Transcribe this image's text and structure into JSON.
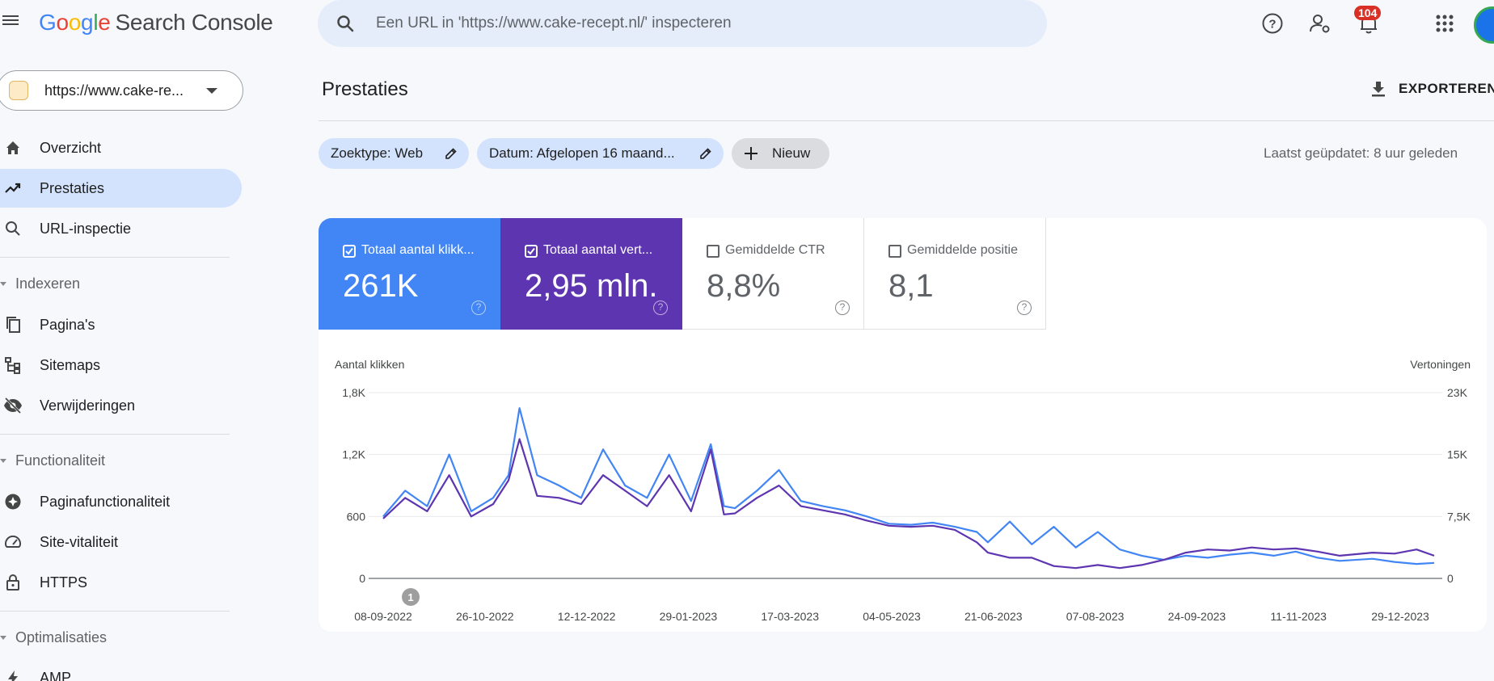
{
  "app": {
    "logo_letters": [
      "G",
      "o",
      "o",
      "g",
      "l",
      "e"
    ],
    "product": "Search Console"
  },
  "search": {
    "placeholder": "Een URL in 'https://www.cake-recept.nl/' inspecteren"
  },
  "topbar": {
    "icons": [
      "help-icon",
      "manage-users-icon",
      "notifications-icon",
      "apps-icon"
    ],
    "notification_count": "104"
  },
  "property": {
    "label": "https://www.cake-re..."
  },
  "sidebar": {
    "items": [
      {
        "label": "Overzicht",
        "icon": "home-icon",
        "active": false
      },
      {
        "label": "Prestaties",
        "icon": "trending-up-icon",
        "active": true
      },
      {
        "label": "URL-inspectie",
        "icon": "search-icon",
        "active": false
      }
    ],
    "sections": [
      {
        "title": "Indexeren",
        "items": [
          {
            "label": "Pagina's",
            "icon": "pages-icon"
          },
          {
            "label": "Sitemaps",
            "icon": "sitemap-icon"
          },
          {
            "label": "Verwijderingen",
            "icon": "eye-off-icon"
          }
        ]
      },
      {
        "title": "Functionaliteit",
        "items": [
          {
            "label": "Paginafunctionaliteit",
            "icon": "page-experience-icon"
          },
          {
            "label": "Site-vitaliteit",
            "icon": "speed-icon"
          },
          {
            "label": "HTTPS",
            "icon": "lock-icon"
          }
        ]
      },
      {
        "title": "Optimalisaties",
        "items": [
          {
            "label": "AMP",
            "icon": "bolt-icon"
          }
        ]
      }
    ]
  },
  "main": {
    "title": "Prestaties",
    "export_label": "EXPORTEREN",
    "filters": [
      {
        "label": "Zoektype: Web"
      },
      {
        "label": "Datum: Afgelopen 16 maand..."
      }
    ],
    "new_filter_label": "Nieuw",
    "last_updated": "Laatst geüpdatet: 8 uur geleden"
  },
  "metrics": [
    {
      "label": "Totaal aantal klikk...",
      "value": "261K",
      "checked": true,
      "color": "#4285f4"
    },
    {
      "label": "Totaal aantal vert...",
      "value": "2,95 mln.",
      "checked": true,
      "color": "#5e35b1"
    },
    {
      "label": "Gemiddelde CTR",
      "value": "8,8%",
      "checked": false
    },
    {
      "label": "Gemiddelde positie",
      "value": "8,1",
      "checked": false
    }
  ],
  "chart_data": {
    "type": "line",
    "left_axis_label": "Aantal klikken",
    "right_axis_label": "Vertoningen",
    "left_ticks": [
      "1,8K",
      "1,2K",
      "600",
      "0"
    ],
    "right_ticks": [
      "23K",
      "15K",
      "7,5K",
      "0"
    ],
    "ylim_left": [
      0,
      1800
    ],
    "ylim_right": [
      0,
      23000
    ],
    "x_tick_labels": [
      "08-09-2022",
      "26-10-2022",
      "12-12-2022",
      "29-01-2023",
      "17-03-2023",
      "04-05-2023",
      "21-06-2023",
      "07-08-2023",
      "24-09-2023",
      "11-11-2023",
      "29-12-2023"
    ],
    "annotation": "1",
    "series": [
      {
        "color": "#4285f4",
        "axis": "left",
        "points": [
          [
            0,
            600
          ],
          [
            10,
            850
          ],
          [
            20,
            700
          ],
          [
            30,
            1200
          ],
          [
            40,
            650
          ],
          [
            50,
            780
          ],
          [
            57,
            1000
          ],
          [
            62,
            1650
          ],
          [
            70,
            1000
          ],
          [
            80,
            900
          ],
          [
            90,
            780
          ],
          [
            100,
            1250
          ],
          [
            110,
            900
          ],
          [
            120,
            780
          ],
          [
            130,
            1200
          ],
          [
            140,
            750
          ],
          [
            149,
            1300
          ],
          [
            155,
            700
          ],
          [
            160,
            680
          ],
          [
            170,
            850
          ],
          [
            180,
            1050
          ],
          [
            190,
            750
          ],
          [
            200,
            700
          ],
          [
            210,
            660
          ],
          [
            220,
            600
          ],
          [
            230,
            530
          ],
          [
            240,
            520
          ],
          [
            250,
            540
          ],
          [
            260,
            500
          ],
          [
            270,
            450
          ],
          [
            275,
            350
          ],
          [
            285,
            550
          ],
          [
            295,
            330
          ],
          [
            305,
            500
          ],
          [
            315,
            300
          ],
          [
            325,
            450
          ],
          [
            335,
            280
          ],
          [
            345,
            220
          ],
          [
            355,
            180
          ],
          [
            365,
            220
          ],
          [
            375,
            200
          ],
          [
            385,
            230
          ],
          [
            395,
            250
          ],
          [
            405,
            220
          ],
          [
            415,
            260
          ],
          [
            425,
            200
          ],
          [
            435,
            170
          ],
          [
            450,
            190
          ],
          [
            460,
            160
          ],
          [
            470,
            140
          ],
          [
            478,
            150
          ]
        ]
      },
      {
        "color": "#5e35b1",
        "axis": "left",
        "points": [
          [
            0,
            580
          ],
          [
            10,
            780
          ],
          [
            20,
            650
          ],
          [
            30,
            1000
          ],
          [
            40,
            600
          ],
          [
            50,
            720
          ],
          [
            57,
            950
          ],
          [
            62,
            1350
          ],
          [
            70,
            800
          ],
          [
            80,
            780
          ],
          [
            90,
            720
          ],
          [
            100,
            1000
          ],
          [
            110,
            850
          ],
          [
            120,
            700
          ],
          [
            130,
            1000
          ],
          [
            140,
            650
          ],
          [
            149,
            1250
          ],
          [
            155,
            620
          ],
          [
            160,
            630
          ],
          [
            170,
            780
          ],
          [
            180,
            900
          ],
          [
            190,
            700
          ],
          [
            200,
            660
          ],
          [
            210,
            620
          ],
          [
            220,
            560
          ],
          [
            230,
            510
          ],
          [
            240,
            500
          ],
          [
            250,
            510
          ],
          [
            260,
            470
          ],
          [
            270,
            350
          ],
          [
            275,
            250
          ],
          [
            285,
            200
          ],
          [
            295,
            200
          ],
          [
            305,
            120
          ],
          [
            315,
            100
          ],
          [
            325,
            130
          ],
          [
            335,
            100
          ],
          [
            345,
            130
          ],
          [
            355,
            180
          ],
          [
            365,
            250
          ],
          [
            375,
            280
          ],
          [
            385,
            270
          ],
          [
            395,
            300
          ],
          [
            405,
            280
          ],
          [
            415,
            290
          ],
          [
            425,
            260
          ],
          [
            435,
            220
          ],
          [
            450,
            250
          ],
          [
            460,
            240
          ],
          [
            470,
            280
          ],
          [
            478,
            220
          ]
        ]
      }
    ]
  }
}
